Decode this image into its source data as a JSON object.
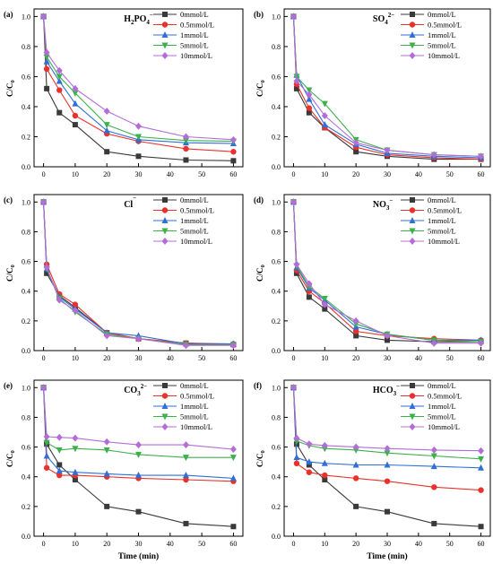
{
  "figure": {
    "series_styles": [
      {
        "color": "#3a3a3a",
        "marker": "square"
      },
      {
        "color": "#e8322b",
        "marker": "circle"
      },
      {
        "color": "#2f6fd6",
        "marker": "triangle-up"
      },
      {
        "color": "#3cb04a",
        "marker": "triangle-down"
      },
      {
        "color": "#b46cd9",
        "marker": "diamond"
      }
    ]
  },
  "chart_data": [
    {
      "type": "line",
      "panel_label": "(a)",
      "title_main": "H",
      "title_sub": "2",
      "title_rest": "PO",
      "title_sub2": "4",
      "title_sup": "−",
      "xlabel": "",
      "ylabel": "C/C",
      "ylabel_sub": "0",
      "x_ticks": [
        "0",
        "10",
        "20",
        "30",
        "40",
        "50",
        "60"
      ],
      "y_ticks": [
        "0.0",
        "0.2",
        "0.4",
        "0.6",
        "0.8",
        "1.0"
      ],
      "xlim": [
        -3,
        63
      ],
      "ylim": [
        0,
        1.05
      ],
      "x": [
        0,
        1,
        5,
        10,
        20,
        30,
        45,
        60
      ],
      "series": [
        {
          "name": "0mmol/L",
          "values": [
            1.0,
            0.52,
            0.36,
            0.28,
            0.1,
            0.07,
            0.045,
            0.04
          ]
        },
        {
          "name": "0.5mmol/L",
          "values": [
            1.0,
            0.65,
            0.51,
            0.34,
            0.22,
            0.17,
            0.12,
            0.1
          ]
        },
        {
          "name": "1mmol/L",
          "values": [
            1.0,
            0.7,
            0.57,
            0.42,
            0.24,
            0.18,
            0.16,
            0.155
          ]
        },
        {
          "name": "5mmol/L",
          "values": [
            1.0,
            0.73,
            0.6,
            0.49,
            0.28,
            0.2,
            0.175,
            0.17
          ]
        },
        {
          "name": "10mmol/L",
          "values": [
            1.0,
            0.76,
            0.64,
            0.52,
            0.37,
            0.27,
            0.2,
            0.18
          ]
        }
      ]
    },
    {
      "type": "line",
      "panel_label": "(b)",
      "title_main": "SO",
      "title_sub": "4",
      "title_rest": "",
      "title_sub2": "",
      "title_sup": "2−",
      "xlabel": "",
      "ylabel": "C/C",
      "ylabel_sub": "0",
      "x_ticks": [
        "0",
        "10",
        "20",
        "30",
        "40",
        "50",
        "60"
      ],
      "y_ticks": [
        "0.0",
        "0.2",
        "0.4",
        "0.6",
        "0.8",
        "1.0"
      ],
      "xlim": [
        -3,
        63
      ],
      "ylim": [
        0,
        1.05
      ],
      "x": [
        0,
        1,
        5,
        10,
        20,
        30,
        45,
        60
      ],
      "series": [
        {
          "name": "0mmol/L",
          "values": [
            1.0,
            0.52,
            0.36,
            0.26,
            0.1,
            0.07,
            0.05,
            0.05
          ]
        },
        {
          "name": "0.5mmol/L",
          "values": [
            1.0,
            0.55,
            0.39,
            0.26,
            0.13,
            0.08,
            0.06,
            0.05
          ]
        },
        {
          "name": "1mmol/L",
          "values": [
            1.0,
            0.61,
            0.45,
            0.28,
            0.15,
            0.09,
            0.07,
            0.06
          ]
        },
        {
          "name": "5mmol/L",
          "values": [
            1.0,
            0.6,
            0.51,
            0.42,
            0.18,
            0.11,
            0.08,
            0.07
          ]
        },
        {
          "name": "10mmol/L",
          "values": [
            1.0,
            0.57,
            0.48,
            0.34,
            0.16,
            0.11,
            0.08,
            0.07
          ]
        }
      ]
    },
    {
      "type": "line",
      "panel_label": "(c)",
      "title_main": "Cl",
      "title_sub": "",
      "title_rest": "",
      "title_sub2": "",
      "title_sup": "−",
      "xlabel": "",
      "ylabel": "C/C",
      "ylabel_sub": "0",
      "x_ticks": [
        "0",
        "10",
        "20",
        "30",
        "40",
        "50",
        "60"
      ],
      "y_ticks": [
        "0.0",
        "0.2",
        "0.4",
        "0.6",
        "0.8",
        "1.0"
      ],
      "xlim": [
        -3,
        63
      ],
      "ylim": [
        0,
        1.05
      ],
      "x": [
        0,
        1,
        5,
        10,
        20,
        30,
        45,
        60
      ],
      "series": [
        {
          "name": "0mmol/L",
          "values": [
            1.0,
            0.52,
            0.37,
            0.29,
            0.12,
            0.08,
            0.05,
            0.04
          ]
        },
        {
          "name": "0.5mmol/L",
          "values": [
            1.0,
            0.58,
            0.38,
            0.31,
            0.12,
            0.08,
            0.05,
            0.045
          ]
        },
        {
          "name": "1mmol/L",
          "values": [
            1.0,
            0.55,
            0.36,
            0.28,
            0.12,
            0.1,
            0.045,
            0.045
          ]
        },
        {
          "name": "5mmol/L",
          "values": [
            1.0,
            0.55,
            0.35,
            0.26,
            0.11,
            0.08,
            0.04,
            0.04
          ]
        },
        {
          "name": "10mmol/L",
          "values": [
            1.0,
            0.56,
            0.34,
            0.27,
            0.1,
            0.08,
            0.035,
            0.035
          ]
        }
      ]
    },
    {
      "type": "line",
      "panel_label": "(d)",
      "title_main": "NO",
      "title_sub": "3",
      "title_rest": "",
      "title_sub2": "",
      "title_sup": "−",
      "xlabel": "",
      "ylabel": "C/C",
      "ylabel_sub": "0",
      "x_ticks": [
        "0",
        "10",
        "20",
        "30",
        "40",
        "50",
        "60"
      ],
      "y_ticks": [
        "0.0",
        "0.2",
        "0.4",
        "0.6",
        "0.8",
        "1.0"
      ],
      "xlim": [
        -3,
        63
      ],
      "ylim": [
        0,
        1.05
      ],
      "x": [
        0,
        1,
        5,
        10,
        20,
        30,
        45,
        60
      ],
      "series": [
        {
          "name": "0mmol/L",
          "values": [
            1.0,
            0.52,
            0.36,
            0.28,
            0.1,
            0.07,
            0.06,
            0.06
          ]
        },
        {
          "name": "0.5mmol/L",
          "values": [
            1.0,
            0.54,
            0.4,
            0.32,
            0.13,
            0.1,
            0.08,
            0.07
          ]
        },
        {
          "name": "1mmol/L",
          "values": [
            1.0,
            0.56,
            0.42,
            0.34,
            0.16,
            0.11,
            0.07,
            0.07
          ]
        },
        {
          "name": "5mmol/L",
          "values": [
            1.0,
            0.57,
            0.43,
            0.35,
            0.18,
            0.11,
            0.07,
            0.06
          ]
        },
        {
          "name": "10mmol/L",
          "values": [
            1.0,
            0.58,
            0.45,
            0.31,
            0.2,
            0.1,
            0.05,
            0.05
          ]
        }
      ]
    },
    {
      "type": "line",
      "panel_label": "(e)",
      "title_main": "CO",
      "title_sub": "3",
      "title_rest": "",
      "title_sub2": "",
      "title_sup": "2−",
      "xlabel": "Time (min)",
      "ylabel": "C/C",
      "ylabel_sub": "0",
      "x_ticks": [
        "0",
        "10",
        "20",
        "30",
        "40",
        "50",
        "60"
      ],
      "y_ticks": [
        "0.0",
        "0.2",
        "0.4",
        "0.6",
        "0.8",
        "1.0"
      ],
      "xlim": [
        -3,
        63
      ],
      "ylim": [
        0,
        1.05
      ],
      "x": [
        0,
        1,
        5,
        10,
        20,
        30,
        45,
        60
      ],
      "series": [
        {
          "name": "0mmol/L",
          "values": [
            1.0,
            0.62,
            0.48,
            0.38,
            0.2,
            0.165,
            0.085,
            0.065
          ]
        },
        {
          "name": "0.5mmol/L",
          "values": [
            1.0,
            0.46,
            0.41,
            0.41,
            0.4,
            0.39,
            0.38,
            0.37
          ]
        },
        {
          "name": "1mmol/L",
          "values": [
            1.0,
            0.54,
            0.44,
            0.43,
            0.42,
            0.41,
            0.41,
            0.39
          ]
        },
        {
          "name": "5mmol/L",
          "values": [
            1.0,
            0.63,
            0.58,
            0.59,
            0.58,
            0.55,
            0.53,
            0.53
          ]
        },
        {
          "name": "10mmol/L",
          "values": [
            1.0,
            0.67,
            0.665,
            0.66,
            0.635,
            0.615,
            0.615,
            0.585
          ]
        }
      ]
    },
    {
      "type": "line",
      "panel_label": "(f)",
      "title_main": "HCO",
      "title_sub": "3",
      "title_rest": "",
      "title_sub2": "",
      "title_sup": "−",
      "xlabel": "Time (min)",
      "ylabel": "C/C",
      "ylabel_sub": "0",
      "x_ticks": [
        "0",
        "10",
        "20",
        "30",
        "40",
        "50",
        "60"
      ],
      "y_ticks": [
        "0.0",
        "0.2",
        "0.4",
        "0.6",
        "0.8",
        "1.0"
      ],
      "xlim": [
        -3,
        63
      ],
      "ylim": [
        0,
        1.05
      ],
      "x": [
        0,
        1,
        5,
        10,
        20,
        30,
        45,
        60
      ],
      "series": [
        {
          "name": "0mmol/L",
          "values": [
            1.0,
            0.62,
            0.48,
            0.38,
            0.2,
            0.165,
            0.085,
            0.065
          ]
        },
        {
          "name": "0.5mmol/L",
          "values": [
            1.0,
            0.49,
            0.43,
            0.41,
            0.39,
            0.37,
            0.33,
            0.31
          ]
        },
        {
          "name": "1mmol/L",
          "values": [
            1.0,
            0.53,
            0.5,
            0.49,
            0.48,
            0.48,
            0.47,
            0.46
          ]
        },
        {
          "name": "5mmol/L",
          "values": [
            1.0,
            0.64,
            0.61,
            0.59,
            0.58,
            0.56,
            0.54,
            0.52
          ]
        },
        {
          "name": "10mmol/L",
          "values": [
            1.0,
            0.66,
            0.62,
            0.61,
            0.6,
            0.59,
            0.58,
            0.575
          ]
        }
      ]
    }
  ]
}
